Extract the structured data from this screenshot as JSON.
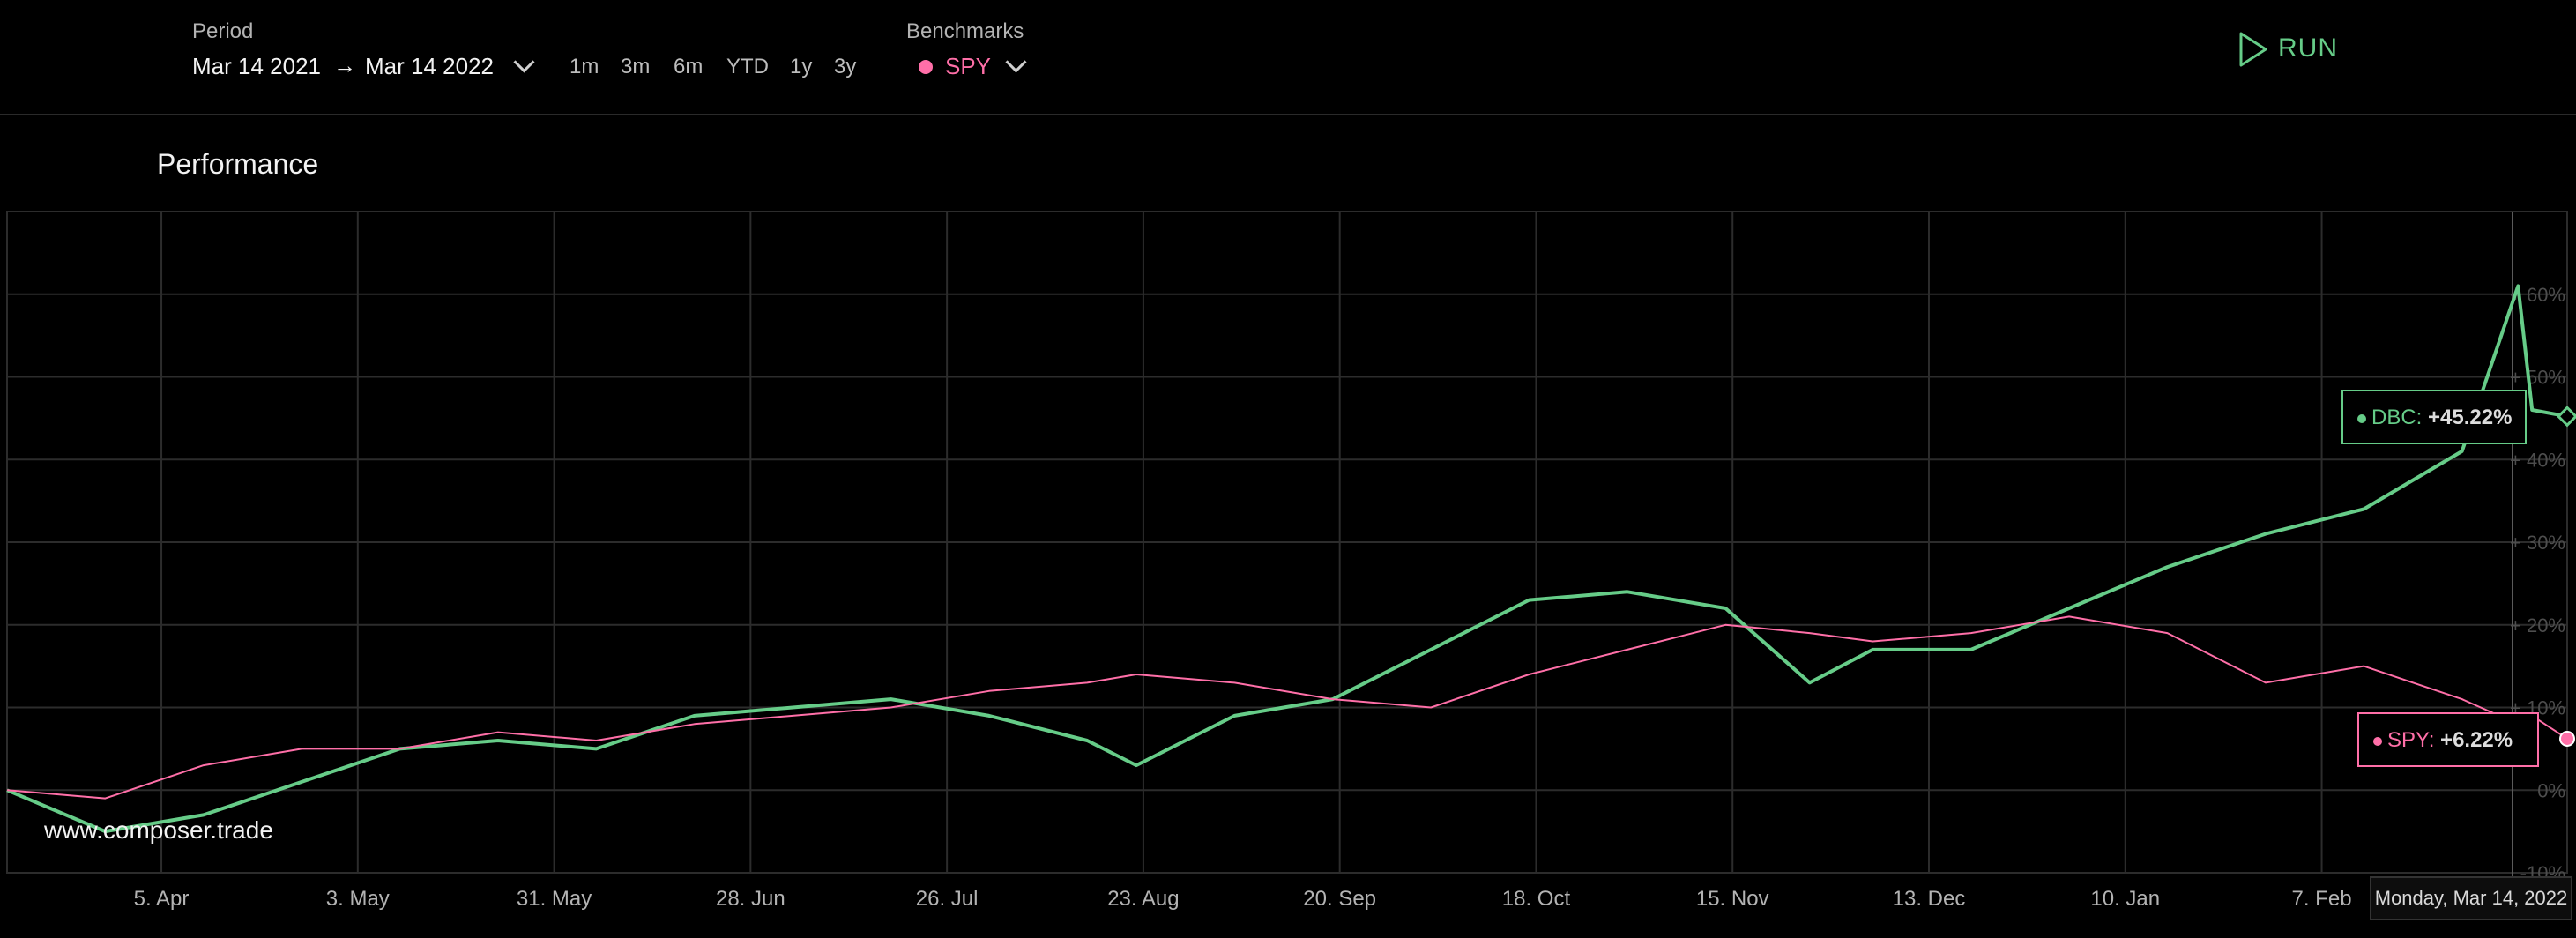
{
  "toolbar": {
    "period_label": "Period",
    "start_date": "Mar 14 2021",
    "end_date": "Mar 14 2022",
    "quick_ranges": [
      "1m",
      "3m",
      "6m",
      "YTD",
      "1y",
      "3y"
    ],
    "benchmarks_label": "Benchmarks",
    "benchmark_selected": "SPY",
    "run_label": "RUN"
  },
  "colors": {
    "primary": "#66cc88",
    "benchmark": "#ff6fa8",
    "grid": "#2c2c2c",
    "background": "#000000"
  },
  "panel": {
    "title": "Performance",
    "watermark": "www.composer.trade"
  },
  "tooltips": {
    "primary": {
      "name": "DBC",
      "value": "+45.22%"
    },
    "benchmark": {
      "name": "SPY",
      "value": "+6.22%"
    },
    "date": "Monday, Mar 14, 2022"
  },
  "chart_data": {
    "type": "line",
    "title": "Performance",
    "x": [
      "2021-03-14",
      "2021-03-28",
      "2021-04-11",
      "2021-04-25",
      "2021-05-09",
      "2021-05-23",
      "2021-06-06",
      "2021-06-20",
      "2021-07-04",
      "2021-07-18",
      "2021-08-01",
      "2021-08-15",
      "2021-08-22",
      "2021-09-05",
      "2021-09-19",
      "2021-10-03",
      "2021-10-17",
      "2021-10-31",
      "2021-11-14",
      "2021-11-26",
      "2021-12-05",
      "2021-12-19",
      "2022-01-02",
      "2022-01-16",
      "2022-01-30",
      "2022-02-13",
      "2022-02-27",
      "2022-03-07",
      "2022-03-09",
      "2022-03-14"
    ],
    "x_ticks": [
      "5. Apr",
      "3. May",
      "31. May",
      "28. Jun",
      "26. Jul",
      "23. Aug",
      "20. Sep",
      "18. Oct",
      "15. Nov",
      "13. Dec",
      "10. Jan",
      "7. Feb"
    ],
    "y_ticks": [
      "-10%",
      "0%",
      "+ 10%",
      "+ 20%",
      "+ 30%",
      "+ 40%",
      "+ 50%",
      "+ 60%"
    ],
    "ylim": [
      -10,
      70
    ],
    "grid": true,
    "series": [
      {
        "name": "DBC",
        "values": [
          0,
          -5,
          -3,
          1,
          5,
          6,
          5,
          9,
          10,
          11,
          9,
          6,
          3,
          9,
          11,
          17,
          23,
          24,
          22,
          13,
          17,
          17,
          22,
          27,
          31,
          34,
          41,
          61,
          46,
          45.22
        ]
      },
      {
        "name": "SPY",
        "values": [
          0,
          -1,
          3,
          5,
          5,
          7,
          6,
          8,
          9,
          10,
          12,
          13,
          14,
          13,
          11,
          10,
          14,
          17,
          20,
          19,
          18,
          19,
          21,
          19,
          13,
          15,
          11,
          8,
          9,
          6.22
        ]
      }
    ]
  }
}
